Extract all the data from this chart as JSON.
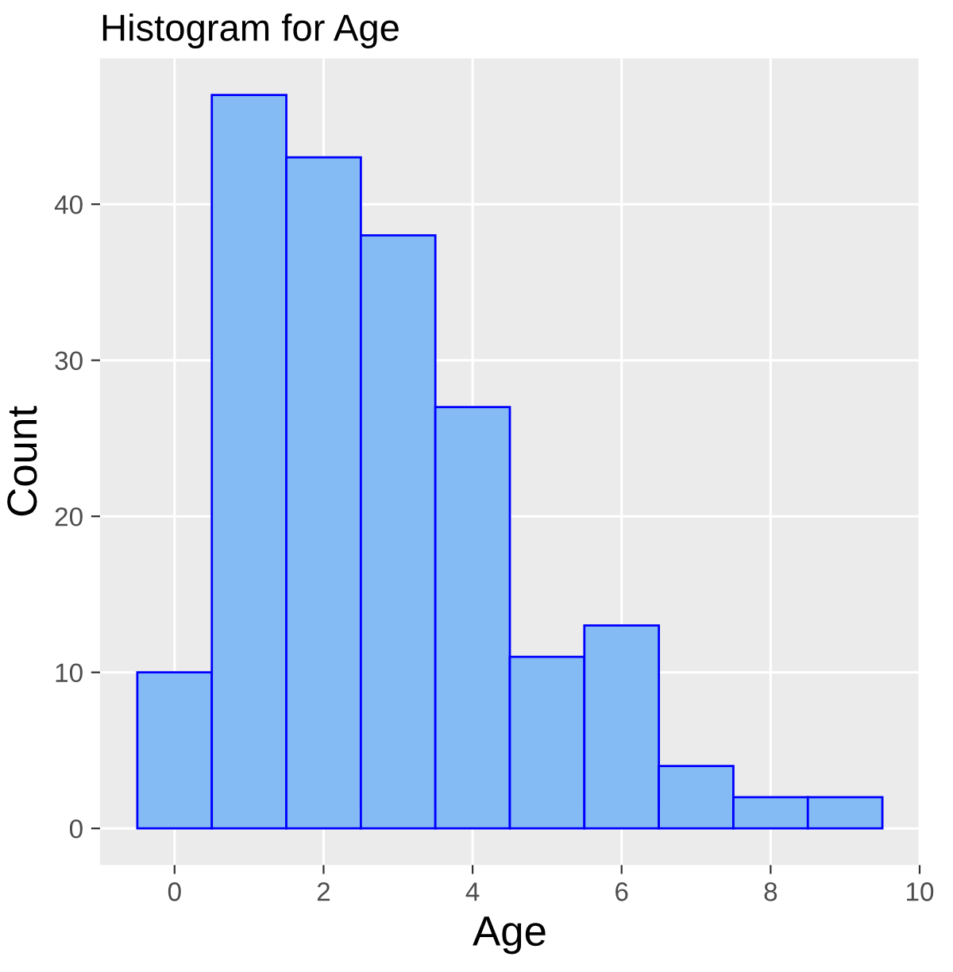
{
  "chart_data": {
    "type": "histogram",
    "title": "Histogram for Age",
    "xlabel": "Age",
    "ylabel": "Count",
    "bins": [
      -0.5,
      0.5,
      1.5,
      2.5,
      3.5,
      4.5,
      5.5,
      6.5,
      7.5,
      8.5,
      9.5
    ],
    "values": [
      10,
      47,
      43,
      38,
      27,
      11,
      13,
      4,
      2,
      2
    ],
    "color": "#85bbf5",
    "xlim": [
      -1,
      10
    ],
    "xticks": [
      0,
      2,
      4,
      6,
      8,
      10
    ],
    "ylim": [
      -2.35,
      49.35
    ],
    "yticks": [
      0,
      10,
      20,
      30,
      40
    ],
    "grid": true,
    "legend": false
  }
}
